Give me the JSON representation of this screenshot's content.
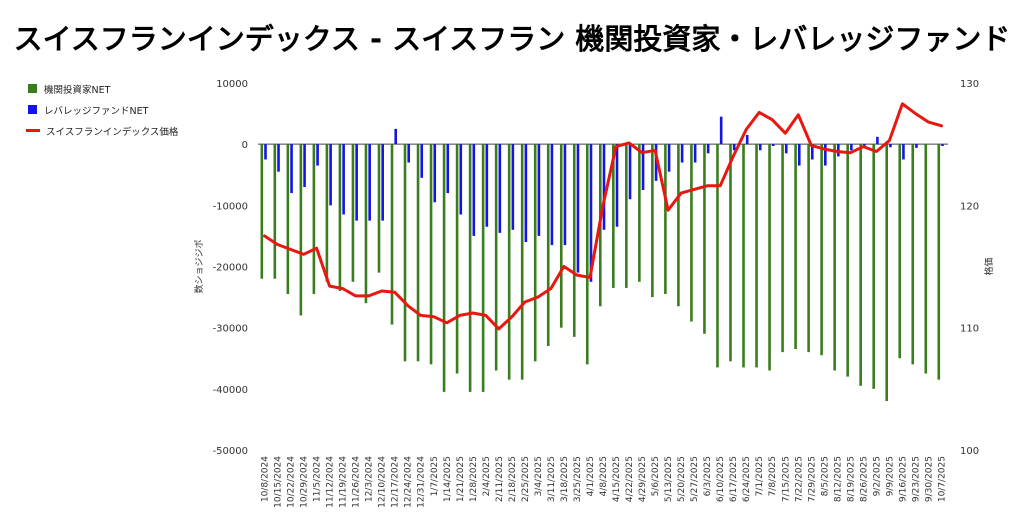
{
  "chart_data": {
    "type": "bar",
    "title": "スイスフランインデックス - スイスフラン 機関投資家・レバレッジファンド",
    "ylabel": "数ショジジポ",
    "y2label": "格価",
    "ylim": [
      -50000,
      10000
    ],
    "y2lim": [
      100,
      130
    ],
    "yticks": [
      "10000",
      "0",
      "-10000",
      "-20000",
      "-30000",
      "-40000",
      "-50000"
    ],
    "y2ticks": [
      "130",
      "120",
      "110",
      "100"
    ],
    "legend_position": "top-left",
    "categories": [
      "10/8/2024",
      "10/15/2024",
      "10/22/2024",
      "10/29/2024",
      "11/5/2024",
      "11/12/2024",
      "11/19/2024",
      "11/26/2024",
      "12/3/2024",
      "12/10/2024",
      "12/17/2024",
      "12/24/2024",
      "12/31/2024",
      "1/7/2025",
      "1/14/2025",
      "1/21/2025",
      "1/28/2025",
      "2/4/2025",
      "2/11/2025",
      "2/18/2025",
      "2/25/2025",
      "3/4/2025",
      "3/11/2025",
      "3/18/2025",
      "3/25/2025",
      "4/1/2025",
      "4/8/2025",
      "4/15/2025",
      "4/22/2025",
      "4/29/2025",
      "5/6/2025",
      "5/13/2025",
      "5/20/2025",
      "5/27/2025",
      "6/3/2025",
      "6/10/2025",
      "6/17/2025",
      "6/24/2025",
      "7/1/2025",
      "7/8/2025",
      "7/15/2025",
      "7/22/2025",
      "7/29/2025",
      "8/5/2025",
      "8/12/2025",
      "8/19/2025",
      "8/26/2025",
      "9/2/2025",
      "9/9/2025",
      "9/16/2025",
      "9/23/2025",
      "9/30/2025",
      "10/7/2025"
    ],
    "series": [
      {
        "name": "機関投資家NET",
        "color": "#3a7d1e",
        "axis": "left",
        "values": [
          -22000,
          -22000,
          -24500,
          -28000,
          -24500,
          -22500,
          -24000,
          -22500,
          -26000,
          -21000,
          -29500,
          -35500,
          -35500,
          -36000,
          -40500,
          -37500,
          -40500,
          -40500,
          -37000,
          -38500,
          -38500,
          -35500,
          -33000,
          -30000,
          -31500,
          -36000,
          -26500,
          -23500,
          -23500,
          -22500,
          -25000,
          -24500,
          -26500,
          -29000,
          -31000,
          -36500,
          -35500,
          -36500,
          -36500,
          -37000,
          -34000,
          -33500,
          -34000,
          -34500,
          -37000,
          -38000,
          -39500,
          -40000,
          -42000,
          -35000,
          -36000,
          -37500,
          -38500
        ]
      },
      {
        "name": "レバレッジファンドNET",
        "color": "#1414e6",
        "axis": "left",
        "values": [
          -2500,
          -4500,
          -8000,
          -7000,
          -3500,
          -10000,
          -11500,
          -12500,
          -12500,
          -12500,
          2500,
          -3000,
          -5500,
          -9500,
          -8000,
          -11500,
          -15000,
          -13500,
          -14500,
          -14000,
          -16000,
          -15000,
          -16500,
          -16500,
          -21000,
          -22500,
          -14000,
          -13500,
          -9000,
          -7500,
          -6000,
          -4500,
          -3000,
          -3000,
          -1500,
          4500,
          -1000,
          1500,
          -1000,
          -300,
          -1500,
          -3500,
          -2500,
          -3500,
          -2000,
          -1000,
          -500,
          1200,
          -500,
          -2500,
          -600,
          0,
          -300
        ]
      },
      {
        "name": "スイスフランインデックス価格",
        "color": "#e8170f",
        "axis": "right",
        "type": "line",
        "values": [
          117.5,
          116.8,
          116.4,
          116.0,
          116.5,
          113.4,
          113.2,
          112.6,
          112.6,
          113.0,
          112.9,
          111.8,
          111.0,
          110.9,
          110.4,
          111.0,
          111.2,
          111.0,
          109.9,
          110.9,
          112.1,
          112.5,
          113.2,
          115.0,
          114.3,
          114.1,
          120.0,
          124.8,
          125.1,
          124.3,
          124.5,
          119.6,
          121.0,
          121.3,
          121.6,
          121.6,
          124.0,
          126.2,
          127.6,
          127.0,
          125.9,
          127.4,
          124.9,
          124.6,
          124.4,
          124.3,
          124.8,
          124.4,
          125.3,
          128.3,
          127.5,
          126.8,
          126.5
        ]
      }
    ]
  }
}
